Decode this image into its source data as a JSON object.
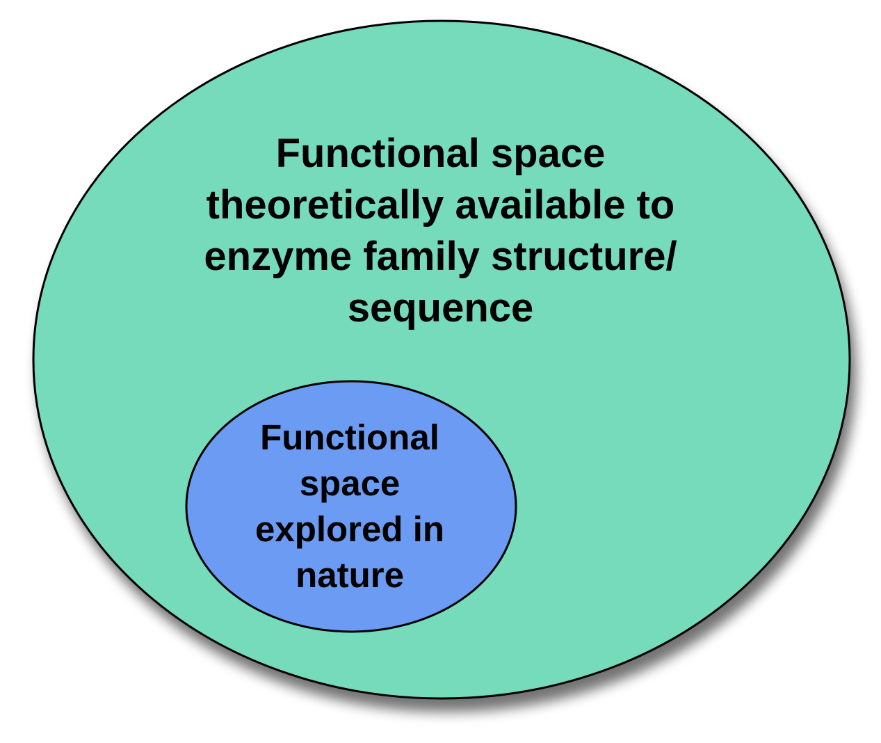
{
  "diagram": {
    "outer_region": {
      "label_lines": [
        "Functional space",
        "theoretically available to",
        "enzyme family structure/",
        "sequence"
      ],
      "fill": "#74dbbb",
      "stroke": "#000000"
    },
    "inner_region": {
      "label_lines": [
        "Functional",
        "space",
        "explored in",
        "nature"
      ],
      "fill": "#6b9bf2",
      "stroke": "#000000"
    }
  }
}
